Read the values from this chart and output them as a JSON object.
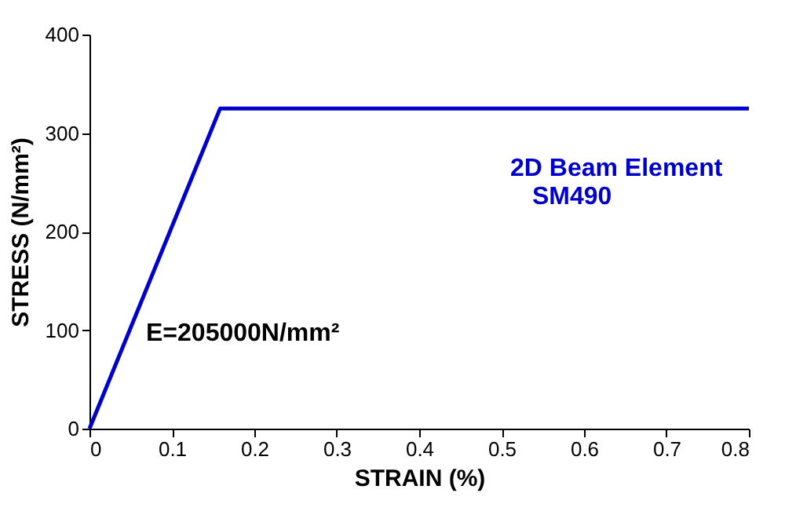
{
  "chart_data": {
    "type": "line",
    "xlabel": "STRAIN (%)",
    "ylabel": "STRESS (N/mm²)",
    "x": [
      0,
      0.1585,
      0.8
    ],
    "series": [
      {
        "color": "#0000cc",
        "values": [
          0,
          325,
          325
        ]
      }
    ],
    "xlim": [
      0,
      0.8
    ],
    "xticks": [
      0,
      0.1,
      0.2,
      0.3,
      0.4,
      0.5,
      0.6,
      0.7,
      0.8
    ],
    "ylim": [
      0,
      400
    ],
    "yticks": [
      0,
      100,
      200,
      300,
      400
    ],
    "grid": false,
    "legend": false,
    "marker": "none",
    "line_style": "solid",
    "annotations": [
      "2D Beam Element",
      "SM490",
      "E=205000N/mm²"
    ]
  }
}
